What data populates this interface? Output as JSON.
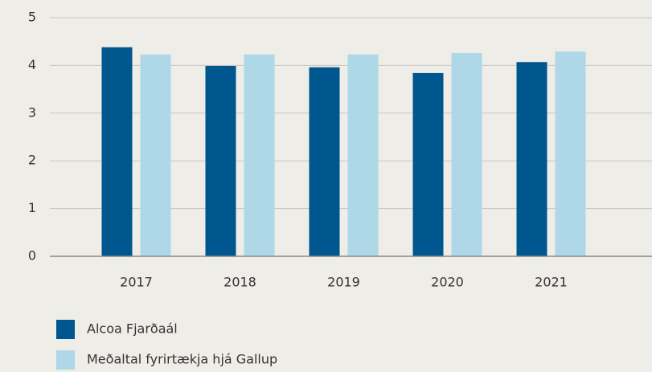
{
  "chart_data": {
    "type": "bar",
    "categories": [
      "2017",
      "2018",
      "2019",
      "2020",
      "2021"
    ],
    "series": [
      {
        "name": "Alcoa Fjarðaál",
        "color": "#00568f",
        "values": [
          4.38,
          3.99,
          3.96,
          3.84,
          4.07
        ]
      },
      {
        "name": "Meðaltal fyrirtækja hjá Gallup",
        "color": "#aed7e7",
        "values": [
          4.23,
          4.23,
          4.23,
          4.26,
          4.29
        ]
      }
    ],
    "ylim": [
      0,
      5
    ],
    "yticks": [
      0,
      1,
      2,
      3,
      4,
      5
    ],
    "grid": true
  }
}
